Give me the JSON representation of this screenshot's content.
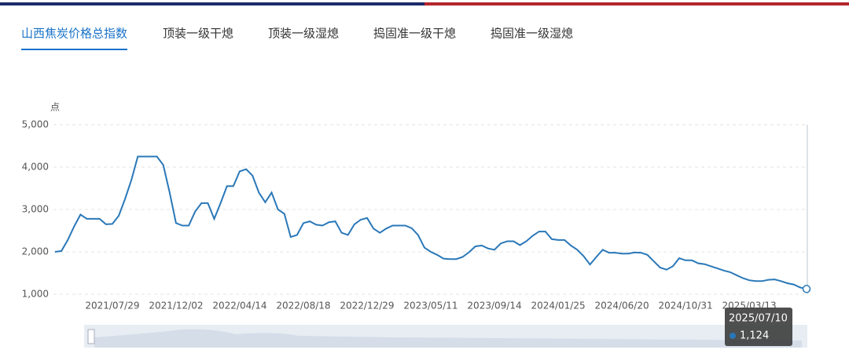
{
  "tabs": [
    "山西焦炭价格总指数",
    "顶装一级干熄",
    "顶装一级湿熄",
    "捣固准一级干熄",
    "捣固准一级湿熄"
  ],
  "active_tab": 0,
  "chart_data": {
    "type": "line",
    "y_label": "点",
    "ylim": [
      1000,
      5000
    ],
    "yticks": [
      {
        "value": 1000,
        "label": "1,000"
      },
      {
        "value": 2000,
        "label": "2,000"
      },
      {
        "value": 3000,
        "label": "3,000"
      },
      {
        "value": 4000,
        "label": "4,000"
      },
      {
        "value": 5000,
        "label": "5,000"
      }
    ],
    "grid": true,
    "categories": [
      null,
      null,
      null,
      null,
      null,
      null,
      null,
      null,
      null,
      "2021/07/29",
      null,
      null,
      null,
      null,
      null,
      null,
      null,
      null,
      null,
      "2021/12/02",
      null,
      null,
      null,
      null,
      null,
      null,
      null,
      null,
      null,
      "2022/04/14",
      null,
      null,
      null,
      null,
      null,
      null,
      null,
      null,
      null,
      "2022/08/18",
      null,
      null,
      null,
      null,
      null,
      null,
      null,
      null,
      null,
      "2022/12/29",
      null,
      null,
      null,
      null,
      null,
      null,
      null,
      null,
      null,
      "2023/05/11",
      null,
      null,
      null,
      null,
      null,
      null,
      null,
      null,
      null,
      "2023/09/14",
      null,
      null,
      null,
      null,
      null,
      null,
      null,
      null,
      null,
      "2024/01/25",
      null,
      null,
      null,
      null,
      null,
      null,
      null,
      null,
      null,
      "2024/06/20",
      null,
      null,
      null,
      null,
      null,
      null,
      null,
      null,
      null,
      "2024/10/31",
      null,
      null,
      null,
      null,
      null,
      null,
      null,
      null,
      null,
      "2025/03/13",
      null,
      null,
      null,
      null,
      null,
      null,
      null,
      null,
      null
    ],
    "series": [
      {
        "color": "#2a78b8",
        "values": [
          2000,
          2020,
          2280,
          2600,
          2880,
          2780,
          2780,
          2780,
          2650,
          2660,
          2850,
          3250,
          3700,
          4250,
          4250,
          4250,
          4250,
          4050,
          3400,
          2680,
          2620,
          2620,
          2950,
          3150,
          3150,
          2780,
          3150,
          3550,
          3550,
          3900,
          3950,
          3800,
          3400,
          3170,
          3400,
          3000,
          2900,
          2350,
          2400,
          2680,
          2720,
          2640,
          2620,
          2700,
          2720,
          2450,
          2400,
          2650,
          2760,
          2800,
          2550,
          2450,
          2550,
          2620,
          2620,
          2620,
          2560,
          2400,
          2100,
          2000,
          1930,
          1840,
          1830,
          1830,
          1880,
          1990,
          2130,
          2150,
          2080,
          2050,
          2200,
          2250,
          2250,
          2160,
          2250,
          2380,
          2480,
          2480,
          2300,
          2280,
          2280,
          2150,
          2050,
          1900,
          1700,
          1880,
          2050,
          1980,
          1980,
          1960,
          1960,
          1985,
          1980,
          1930,
          1780,
          1630,
          1580,
          1660,
          1850,
          1800,
          1800,
          1730,
          1710,
          1660,
          1610,
          1560,
          1520,
          1450,
          1380,
          1330,
          1310,
          1310,
          1340,
          1350,
          1310,
          1260,
          1230,
          1160,
          1124
        ]
      }
    ],
    "tooltip": {
      "x": "2025/07/10",
      "value_label": "1,124"
    }
  }
}
